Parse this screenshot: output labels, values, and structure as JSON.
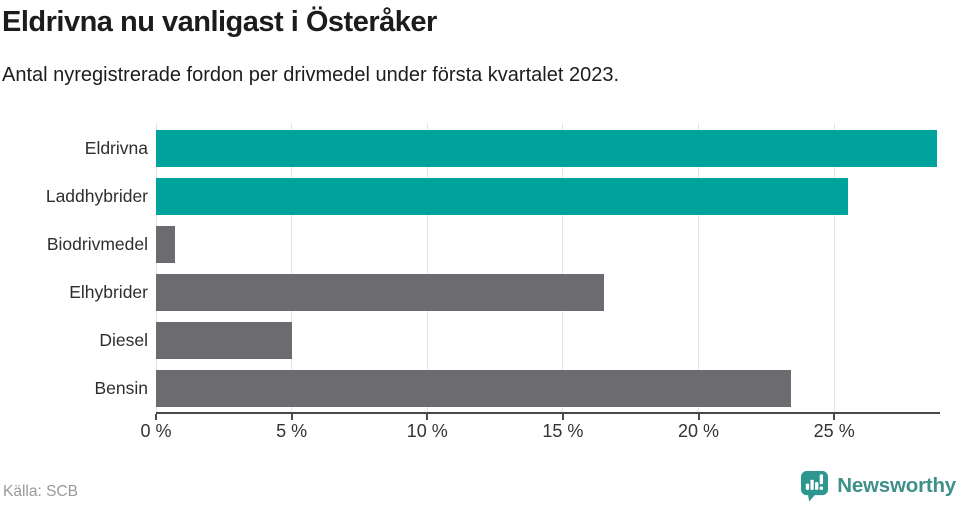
{
  "header": {
    "title": "Eldrivna nu vanligast i Österåker",
    "subtitle": "Antal nyregistrerade fordon per drivmedel under första kvartalet 2023."
  },
  "chart_data": {
    "type": "bar",
    "orientation": "horizontal",
    "title": "Eldrivna nu vanligast i Österåker",
    "subtitle": "Antal nyregistrerade fordon per drivmedel under första kvartalet 2023.",
    "categories": [
      "Eldrivna",
      "Laddhybrider",
      "Biodrivmedel",
      "Elhybrider",
      "Diesel",
      "Bensin"
    ],
    "values": [
      28.8,
      25.5,
      0.7,
      16.5,
      5.0,
      23.4
    ],
    "unit": "%",
    "bar_colors": [
      "#00a39b",
      "#00a39b",
      "#6b6b70",
      "#6b6b70",
      "#6b6b70",
      "#6b6b70"
    ],
    "x_tick_labels": [
      "0 %",
      "5 %",
      "10 %",
      "15 %",
      "20 %",
      "25 %"
    ],
    "x_tick_values": [
      0,
      5,
      10,
      15,
      20,
      25
    ],
    "xlim": [
      0,
      28.9
    ],
    "xlabel": "",
    "ylabel": "",
    "grid": true,
    "legend": "none"
  },
  "colors": {
    "teal_accent": "#00a39b",
    "gray_bar": "#6b6b70",
    "gridline": "#e4e4e4",
    "axis": "#4a4a4a",
    "logo_teal": "#2d968e",
    "logo_text": "#3f908b"
  },
  "footer": {
    "source": "Källa: SCB",
    "brand": "Newsworthy"
  }
}
